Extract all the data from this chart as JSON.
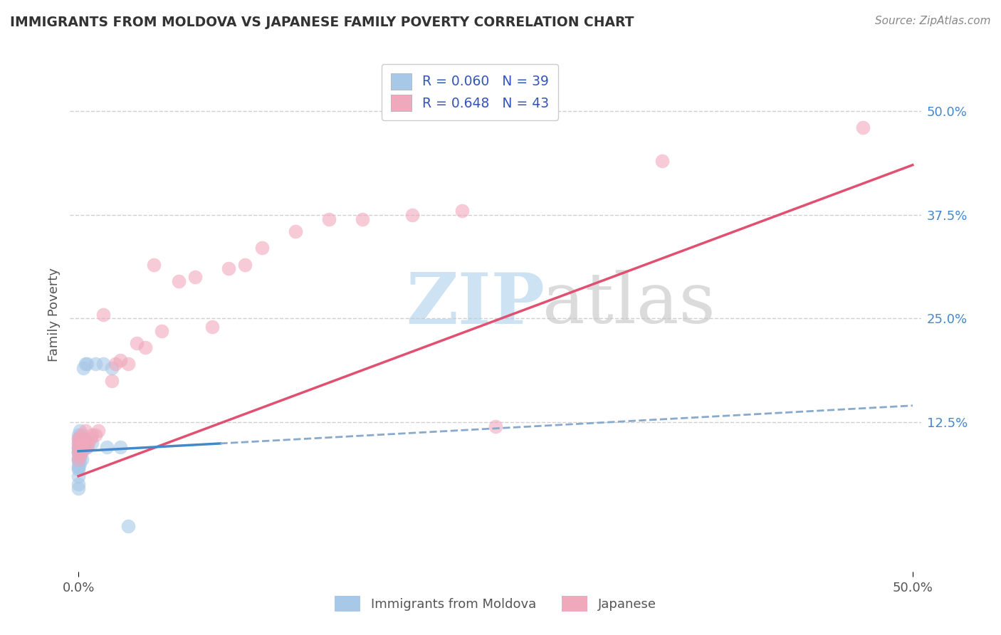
{
  "title": "IMMIGRANTS FROM MOLDOVA VS JAPANESE FAMILY POVERTY CORRELATION CHART",
  "source": "Source: ZipAtlas.com",
  "ylabel": "Family Poverty",
  "xlim": [
    -0.005,
    0.505
  ],
  "ylim": [
    -0.055,
    0.565
  ],
  "ytick_vals": [
    0.125,
    0.25,
    0.375,
    0.5
  ],
  "ytick_labels": [
    "12.5%",
    "25.0%",
    "37.5%",
    "50.0%"
  ],
  "xtick_vals": [
    0.0,
    0.5
  ],
  "xtick_labels": [
    "0.0%",
    "50.0%"
  ],
  "grid_color": "#c8c8c8",
  "legend_R1": "R = 0.060",
  "legend_N1": "N = 39",
  "legend_R2": "R = 0.648",
  "legend_N2": "N = 43",
  "color_blue": "#a8c8e8",
  "color_pink": "#f0a8bc",
  "line_blue_solid": "#4488cc",
  "line_blue_dash": "#88aacc",
  "line_pink": "#e05070",
  "blue_x": [
    0.0,
    0.0,
    0.0,
    0.0,
    0.0,
    0.0,
    0.0,
    0.0,
    0.0,
    0.0,
    0.0,
    0.0,
    0.0,
    0.0,
    0.0,
    0.0,
    0.001,
    0.001,
    0.001,
    0.001,
    0.001,
    0.001,
    0.001,
    0.002,
    0.002,
    0.002,
    0.002,
    0.003,
    0.003,
    0.004,
    0.005,
    0.005,
    0.008,
    0.01,
    0.015,
    0.017,
    0.02,
    0.025,
    0.03
  ],
  "blue_y": [
    0.07,
    0.08,
    0.09,
    0.095,
    0.1,
    0.105,
    0.11,
    0.045,
    0.05,
    0.06,
    0.068,
    0.072,
    0.078,
    0.082,
    0.088,
    0.093,
    0.075,
    0.082,
    0.09,
    0.097,
    0.103,
    0.108,
    0.115,
    0.08,
    0.09,
    0.098,
    0.105,
    0.095,
    0.19,
    0.195,
    0.095,
    0.195,
    0.1,
    0.195,
    0.195,
    0.095,
    0.19,
    0.095,
    0.0
  ],
  "pink_x": [
    0.0,
    0.0,
    0.0,
    0.0,
    0.0,
    0.001,
    0.001,
    0.001,
    0.002,
    0.002,
    0.002,
    0.003,
    0.004,
    0.004,
    0.005,
    0.006,
    0.007,
    0.008,
    0.01,
    0.012,
    0.015,
    0.02,
    0.022,
    0.025,
    0.03,
    0.035,
    0.04,
    0.045,
    0.05,
    0.06,
    0.07,
    0.08,
    0.09,
    0.1,
    0.11,
    0.13,
    0.15,
    0.17,
    0.2,
    0.23,
    0.25,
    0.35,
    0.47
  ],
  "pink_y": [
    0.08,
    0.088,
    0.095,
    0.1,
    0.105,
    0.085,
    0.095,
    0.105,
    0.09,
    0.1,
    0.11,
    0.095,
    0.1,
    0.115,
    0.095,
    0.1,
    0.105,
    0.11,
    0.11,
    0.115,
    0.255,
    0.175,
    0.195,
    0.2,
    0.195,
    0.22,
    0.215,
    0.315,
    0.235,
    0.295,
    0.3,
    0.24,
    0.31,
    0.315,
    0.335,
    0.355,
    0.37,
    0.37,
    0.375,
    0.38,
    0.12,
    0.44,
    0.48
  ]
}
